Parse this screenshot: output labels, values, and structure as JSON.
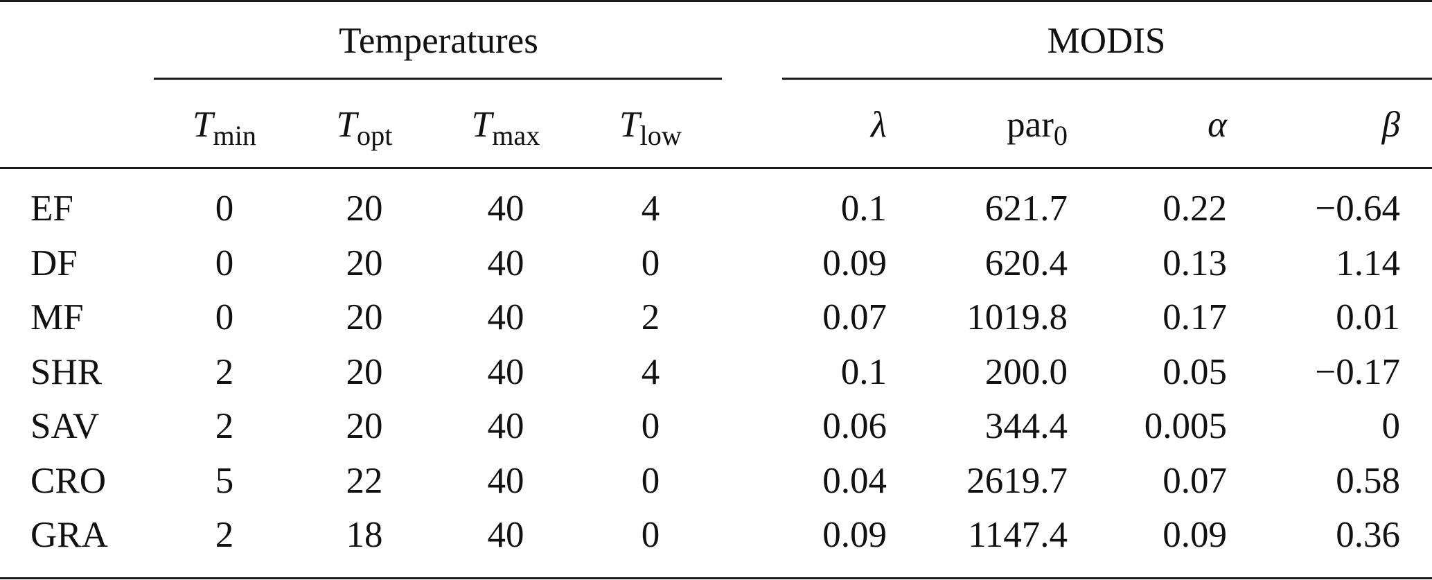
{
  "groups": {
    "temperatures": "Temperatures",
    "modis": "MODIS"
  },
  "columns": [
    {
      "symbol": "T",
      "subscript": "min"
    },
    {
      "symbol": "T",
      "subscript": "opt"
    },
    {
      "symbol": "T",
      "subscript": "max"
    },
    {
      "symbol": "T",
      "subscript": "low"
    },
    {
      "symbol": "λ",
      "subscript": ""
    },
    {
      "symbol": "par",
      "subscript": "0"
    },
    {
      "symbol": "α",
      "subscript": ""
    },
    {
      "symbol": "β",
      "subscript": ""
    }
  ],
  "rows": [
    {
      "label": "EF",
      "values": [
        "0",
        "20",
        "40",
        "4",
        "0.1",
        "621.7",
        "0.22",
        "−0.64"
      ]
    },
    {
      "label": "DF",
      "values": [
        "0",
        "20",
        "40",
        "0",
        "0.09",
        "620.4",
        "0.13",
        "1.14"
      ]
    },
    {
      "label": "MF",
      "values": [
        "0",
        "20",
        "40",
        "2",
        "0.07",
        "1019.8",
        "0.17",
        "0.01"
      ]
    },
    {
      "label": "SHR",
      "values": [
        "2",
        "20",
        "40",
        "4",
        "0.1",
        "200.0",
        "0.05",
        "−0.17"
      ]
    },
    {
      "label": "SAV",
      "values": [
        "2",
        "20",
        "40",
        "0",
        "0.06",
        "344.4",
        "0.005",
        "0"
      ]
    },
    {
      "label": "CRO",
      "values": [
        "5",
        "22",
        "40",
        "0",
        "0.04",
        "2619.7",
        "0.07",
        "0.58"
      ]
    },
    {
      "label": "GRA",
      "values": [
        "2",
        "18",
        "40",
        "0",
        "0.09",
        "1147.4",
        "0.09",
        "0.36"
      ]
    }
  ]
}
